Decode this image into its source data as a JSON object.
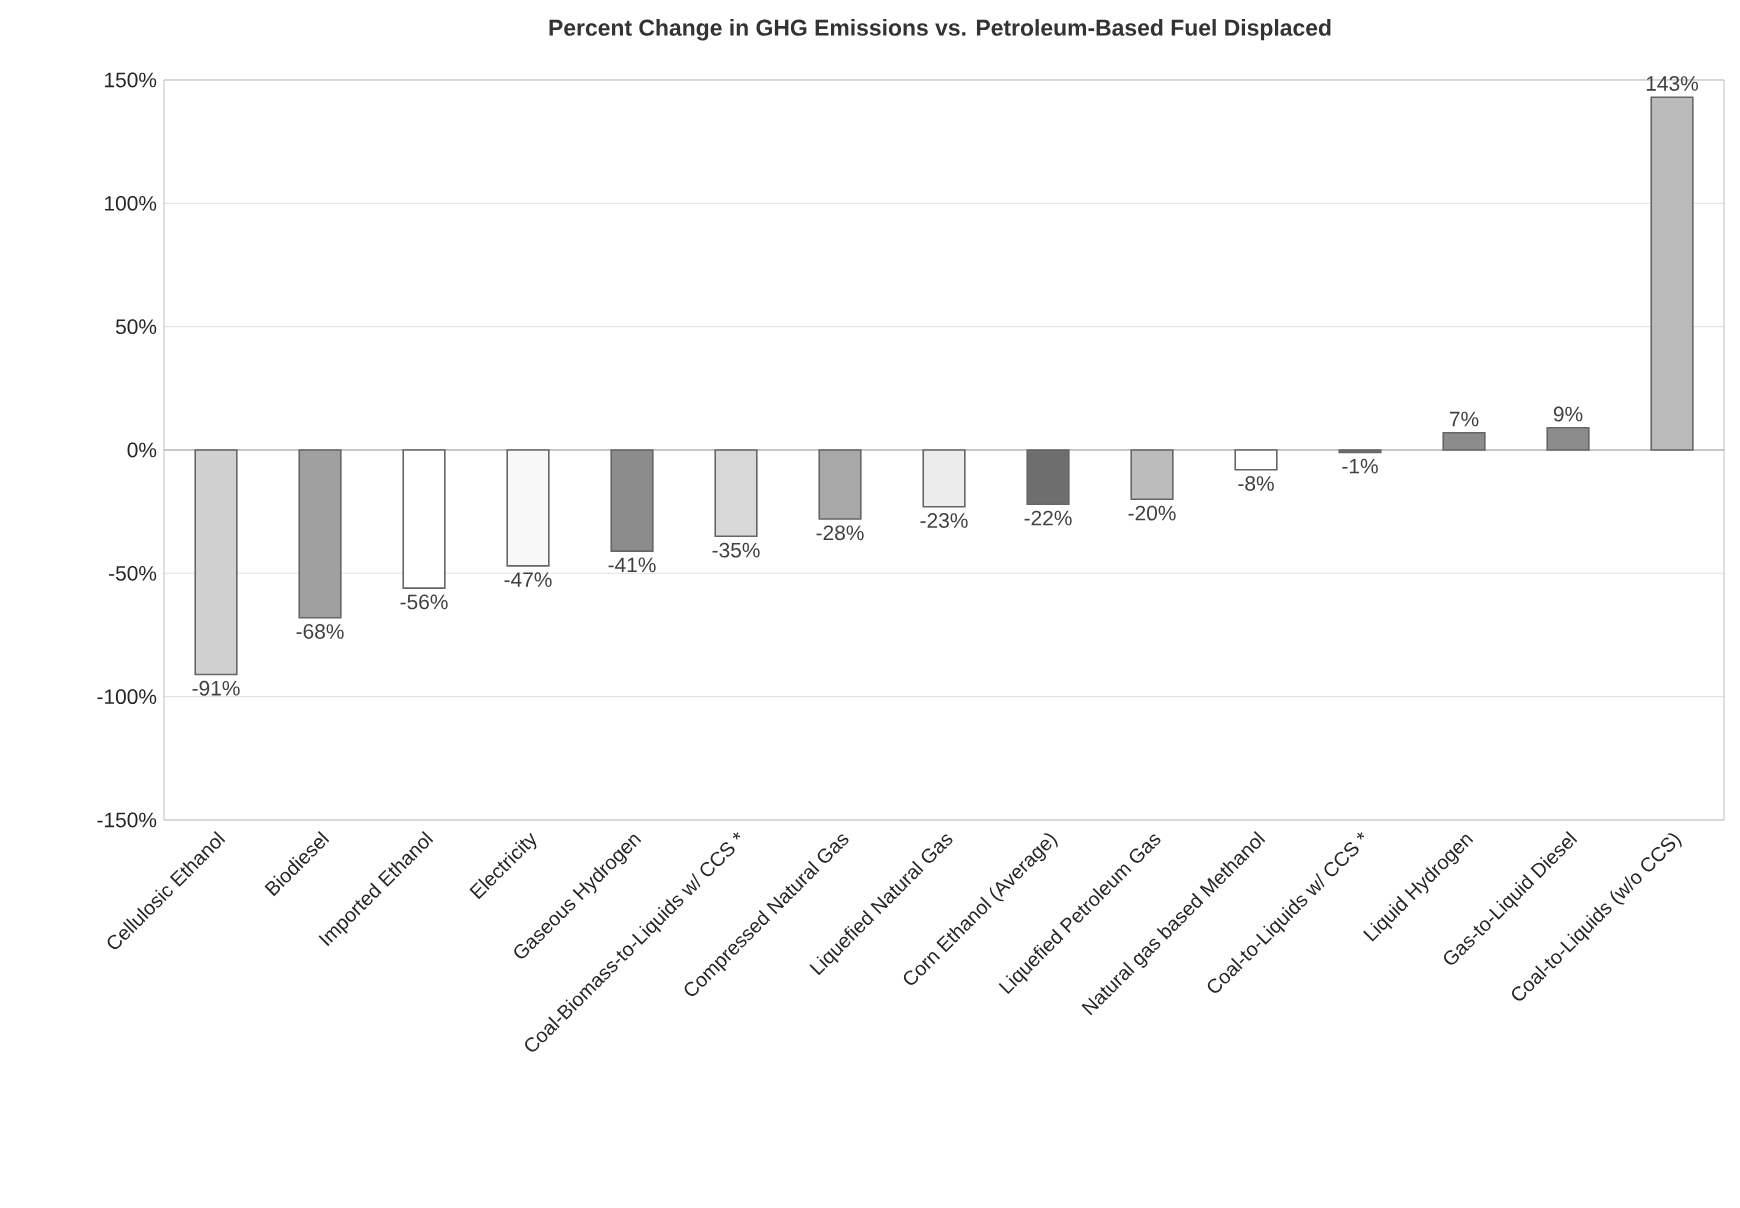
{
  "chart_data": {
    "type": "bar",
    "title": "Percent Change in GHG Emissions vs. Petroleum-Based Fuel Displaced",
    "categories": [
      "Cellulosic Ethanol",
      "Biodiesel",
      "Imported Ethanol",
      "Electricity",
      "Gaseous Hydrogen",
      "Coal-Biomass-to-Liquids w/ CCS *",
      "Compressed Natural Gas",
      "Liquefied Natural Gas",
      "Corn Ethanol (Average)",
      "Liquefied Petroleum Gas",
      "Natural gas based Methanol",
      "Coal-to-Liquids w/ CCS *",
      "Liquid Hydrogen",
      "Gas-to-Liquid Diesel",
      "Coal-to-Liquids (w/o CCS)"
    ],
    "values": [
      -91,
      -68,
      -56,
      -47,
      -41,
      -35,
      -28,
      -23,
      -22,
      -20,
      -8,
      -1,
      7,
      9,
      143
    ],
    "value_labels": [
      "-91%",
      "-68%",
      "-56%",
      "-47%",
      "-41%",
      "-35%",
      "-28%",
      "-23%",
      "-22%",
      "-20%",
      "-8%",
      "-1%",
      "7%",
      "9%",
      "143%"
    ],
    "colors": [
      "#d0d0d0",
      "#a0a0a0",
      "#ffffff",
      "#f8f8f8",
      "#8c8c8c",
      "#d8d8d8",
      "#a8a8a8",
      "#ececec",
      "#6e6e6e",
      "#bcbcbc",
      "#ffffff",
      "#707070",
      "#8c8c8c",
      "#8c8c8c",
      "#bababa"
    ],
    "ylim": [
      -150,
      150
    ],
    "yticks": [
      {
        "value": -150,
        "label": "-150%"
      },
      {
        "value": -100,
        "label": "-100%"
      },
      {
        "value": -50,
        "label": "-50%"
      },
      {
        "value": 0,
        "label": "0%"
      },
      {
        "value": 50,
        "label": "50%"
      },
      {
        "value": 100,
        "label": "100%"
      },
      {
        "value": 150,
        "label": "150%"
      }
    ],
    "grid": "y"
  }
}
